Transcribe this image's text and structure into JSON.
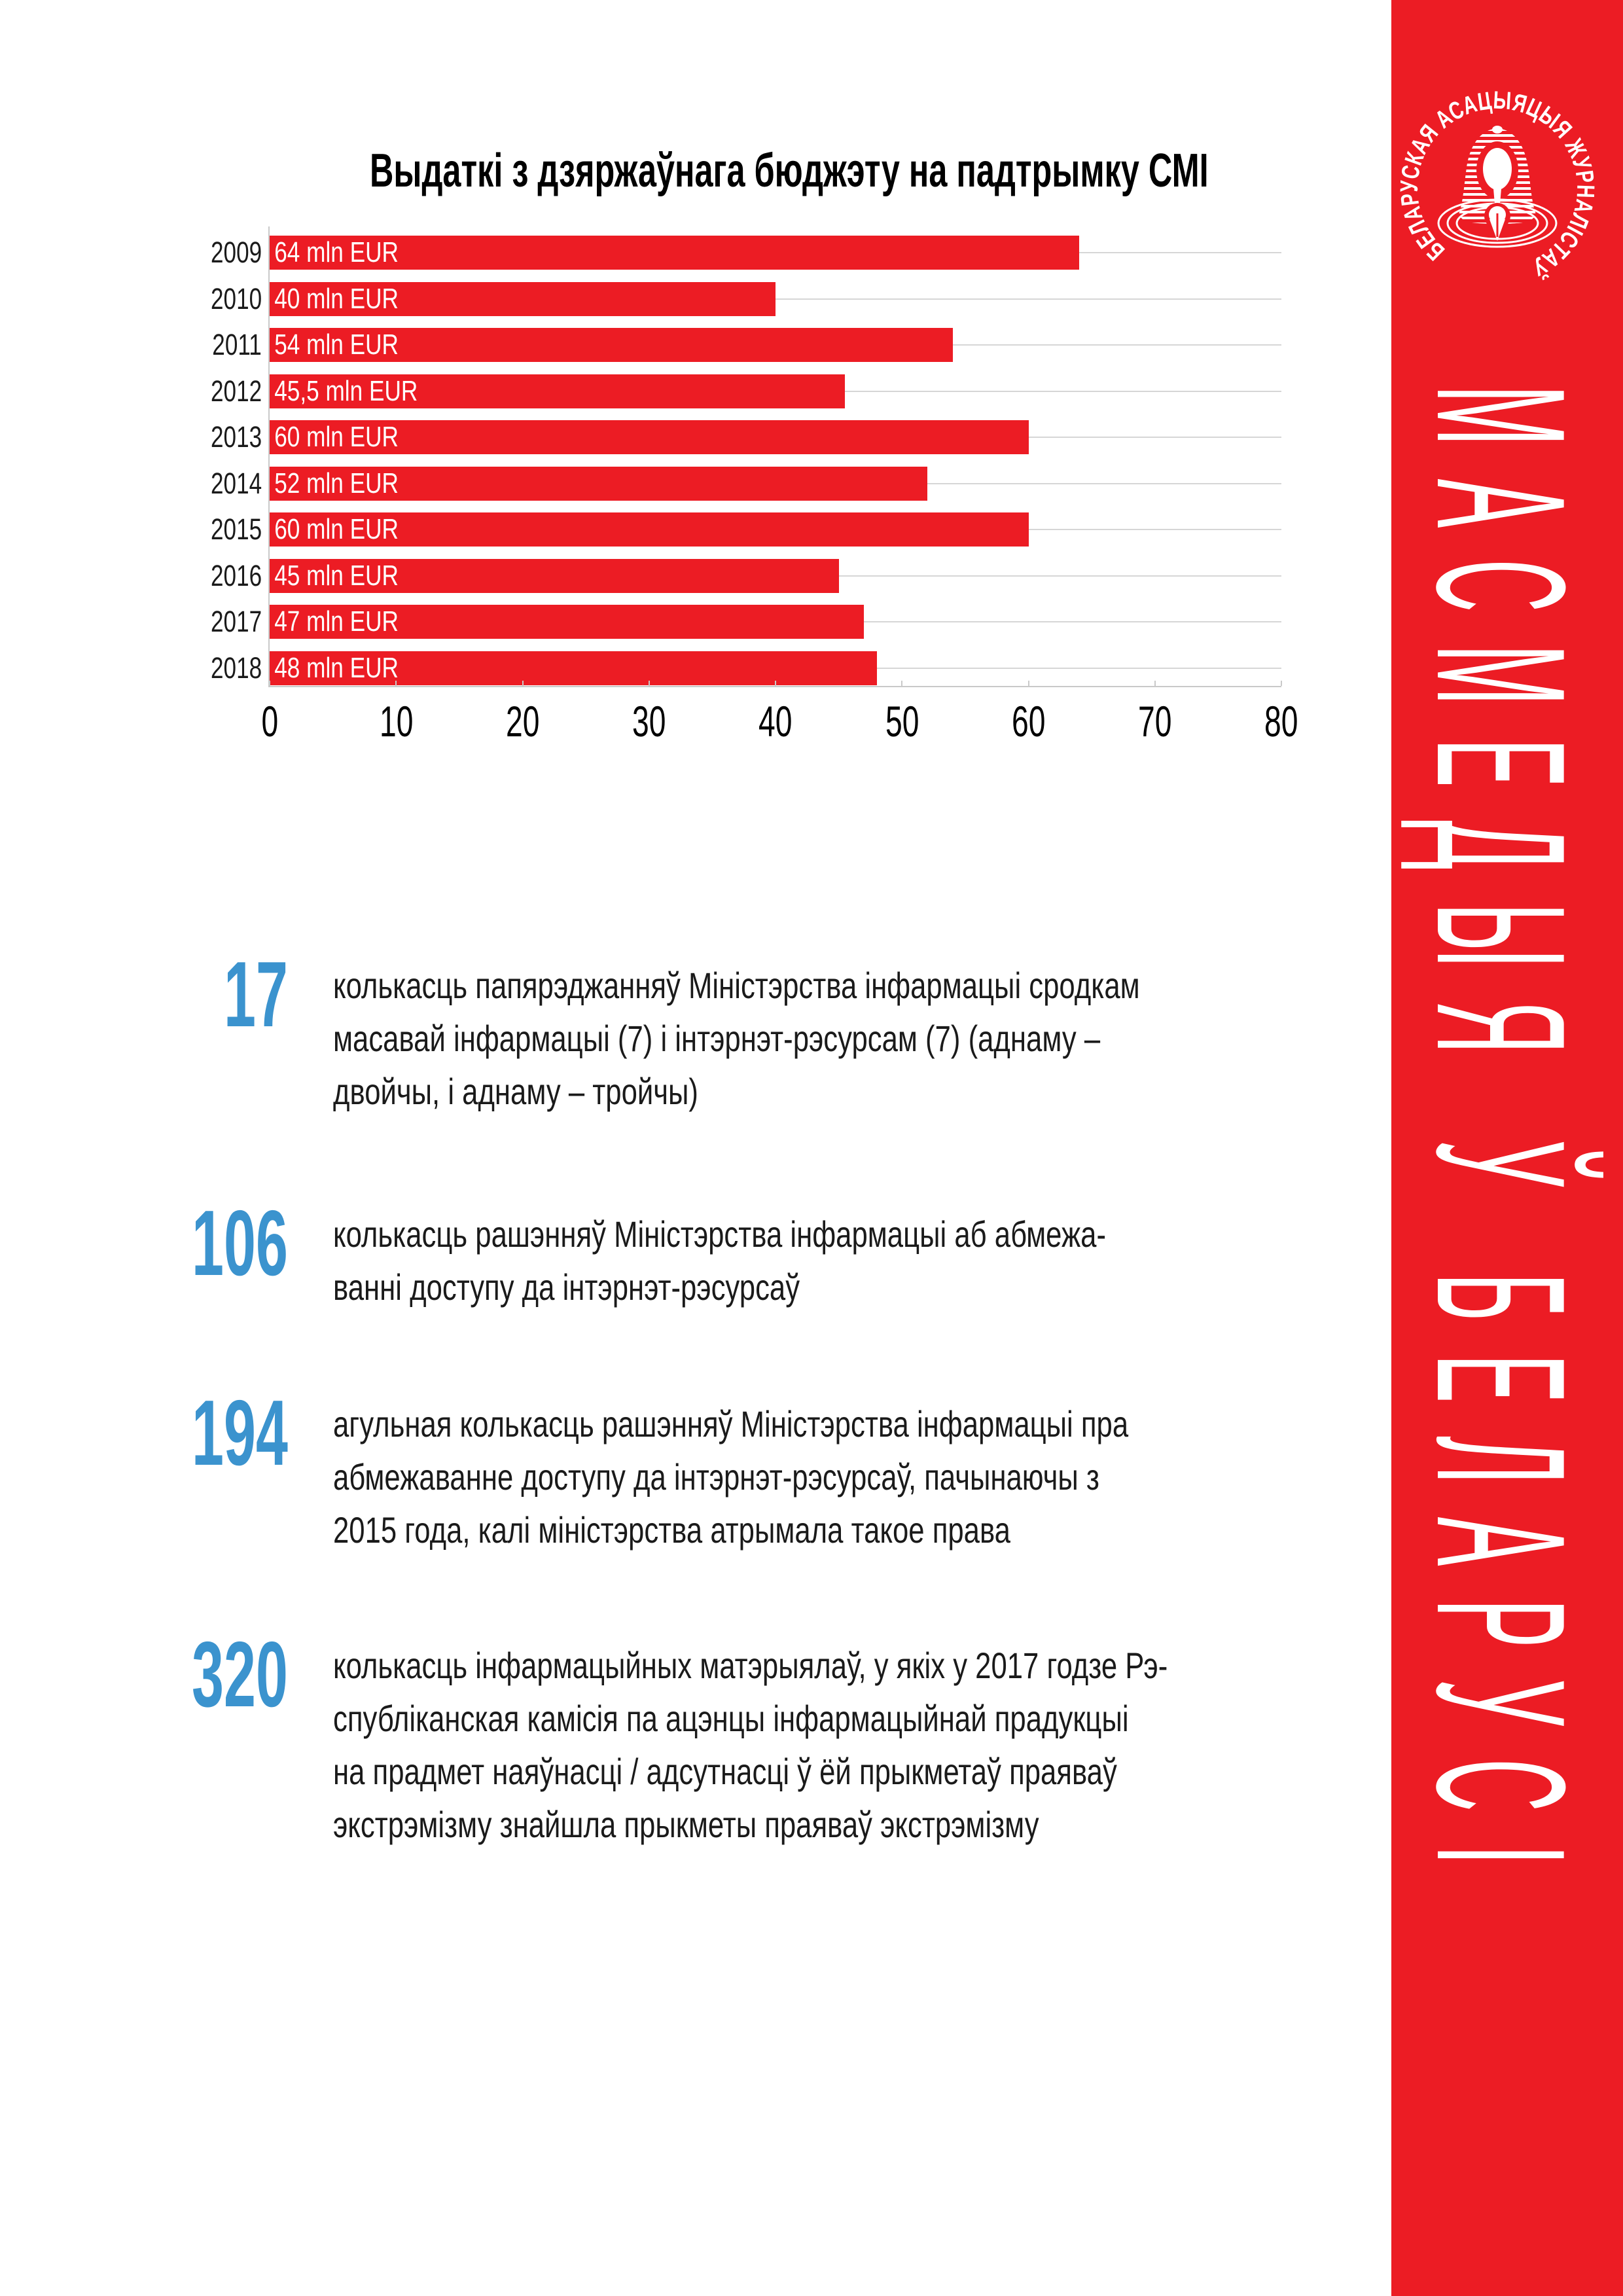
{
  "colors": {
    "accent_red": "#EC1C24",
    "accent_blue": "#3B93CE",
    "text": "#1A1A1A",
    "gridline": "#D6D6D6",
    "axis": "#C9C9C9",
    "bar_label": "#FFFFFF"
  },
  "chart_data": {
    "type": "bar",
    "orientation": "horizontal",
    "title": "Выдаткі з дзяржаўнага бюджэту на падтрымку СМІ",
    "categories": [
      "2009",
      "2010",
      "2011",
      "2012",
      "2013",
      "2014",
      "2015",
      "2016",
      "2017",
      "2018"
    ],
    "values": [
      64,
      40,
      54,
      45.5,
      60,
      52,
      60,
      45,
      47,
      48
    ],
    "bar_labels": [
      "64 mln EUR",
      "40 mln EUR",
      "54 mln EUR",
      "45,5 mln EUR",
      "60 mln EUR",
      "52 mln EUR",
      "60 mln EUR",
      "45 mln EUR",
      "47 mln EUR",
      "48 mln EUR"
    ],
    "x_ticks": [
      "0",
      "10",
      "20",
      "30",
      "40",
      "50",
      "60",
      "70",
      "80"
    ],
    "xlim": [
      0,
      80
    ],
    "xlabel": "",
    "ylabel": "",
    "grid": "category-lines",
    "legend": false,
    "bar_color": "#EC1C24",
    "bar_label_color": "#FFFFFF"
  },
  "stats": [
    {
      "number": "17",
      "lines": [
        "колькасць папярэджанняў Міністэрства інфармацыі сродкам",
        "масавай інфармацыі (7) і інтэрнэт-рэсурсам (7) (аднаму –",
        "двойчы, і аднаму – тройчы)"
      ]
    },
    {
      "number": "106",
      "lines": [
        "колькасць рашэнняў Міністэрства інфармацыі аб абмежа-",
        "ванні доступу да інтэрнэт-рэсурсаў"
      ]
    },
    {
      "number": "194",
      "lines": [
        "агульная колькасць рашэнняў Міністэрства інфармацыі пра",
        "абмежаванне доступу да інтэрнэт-рэсурсаў, пачынаючы з",
        "2015 года, калі міністэрства атрымала такое права"
      ]
    },
    {
      "number": "320",
      "lines": [
        "колькасць інфармацыйных матэрыялаў, у якіх у 2017 годзе Рэ-",
        "спубліканская камісія па ацэнцы інфармацыйнай прадукцыі",
        "на прадмет наяўнасці / адсутнасці ў ёй прыкметаў праяваў",
        "экстрэмізму знайшла прыкметы праяваў экстрэмізму"
      ]
    }
  ],
  "sidebar": {
    "title": "МАСМЕДЫЯ Ў БЕЛАРУСІ",
    "logo_text": "БЕЛАРУСКАЯ АСАЦЫЯЦЫЯ ЖУРНАЛІСТАЎ",
    "color": "#EC1C24"
  }
}
